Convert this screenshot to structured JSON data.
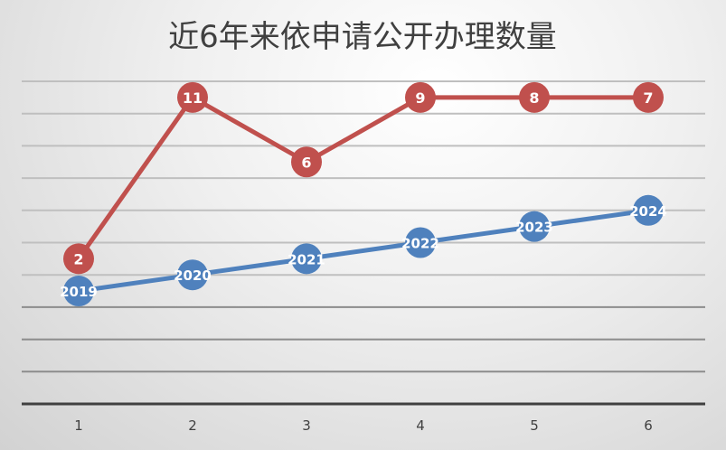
{
  "chart_data": {
    "type": "line",
    "title": "近6年来依申请公开办理数量",
    "categories": [
      "1",
      "2",
      "3",
      "4",
      "5",
      "6"
    ],
    "xlabel": "",
    "ylabel": "",
    "y_axis_labels_shown": false,
    "ylim": [
      0,
      10
    ],
    "grid": true,
    "legend": "none",
    "series": [
      {
        "color": "#4f81bd",
        "y": [
          3.5,
          4.0,
          4.5,
          5.0,
          5.5,
          6.0
        ],
        "data_labels": [
          "2019",
          "2020",
          "2021",
          "2022",
          "2023",
          "2024"
        ]
      },
      {
        "color": "#c0504d",
        "y": [
          4.5,
          9.5,
          7.5,
          9.5,
          9.5,
          9.5
        ],
        "data_labels": [
          "2",
          "11",
          "6",
          "9",
          "8",
          "7"
        ]
      }
    ]
  }
}
